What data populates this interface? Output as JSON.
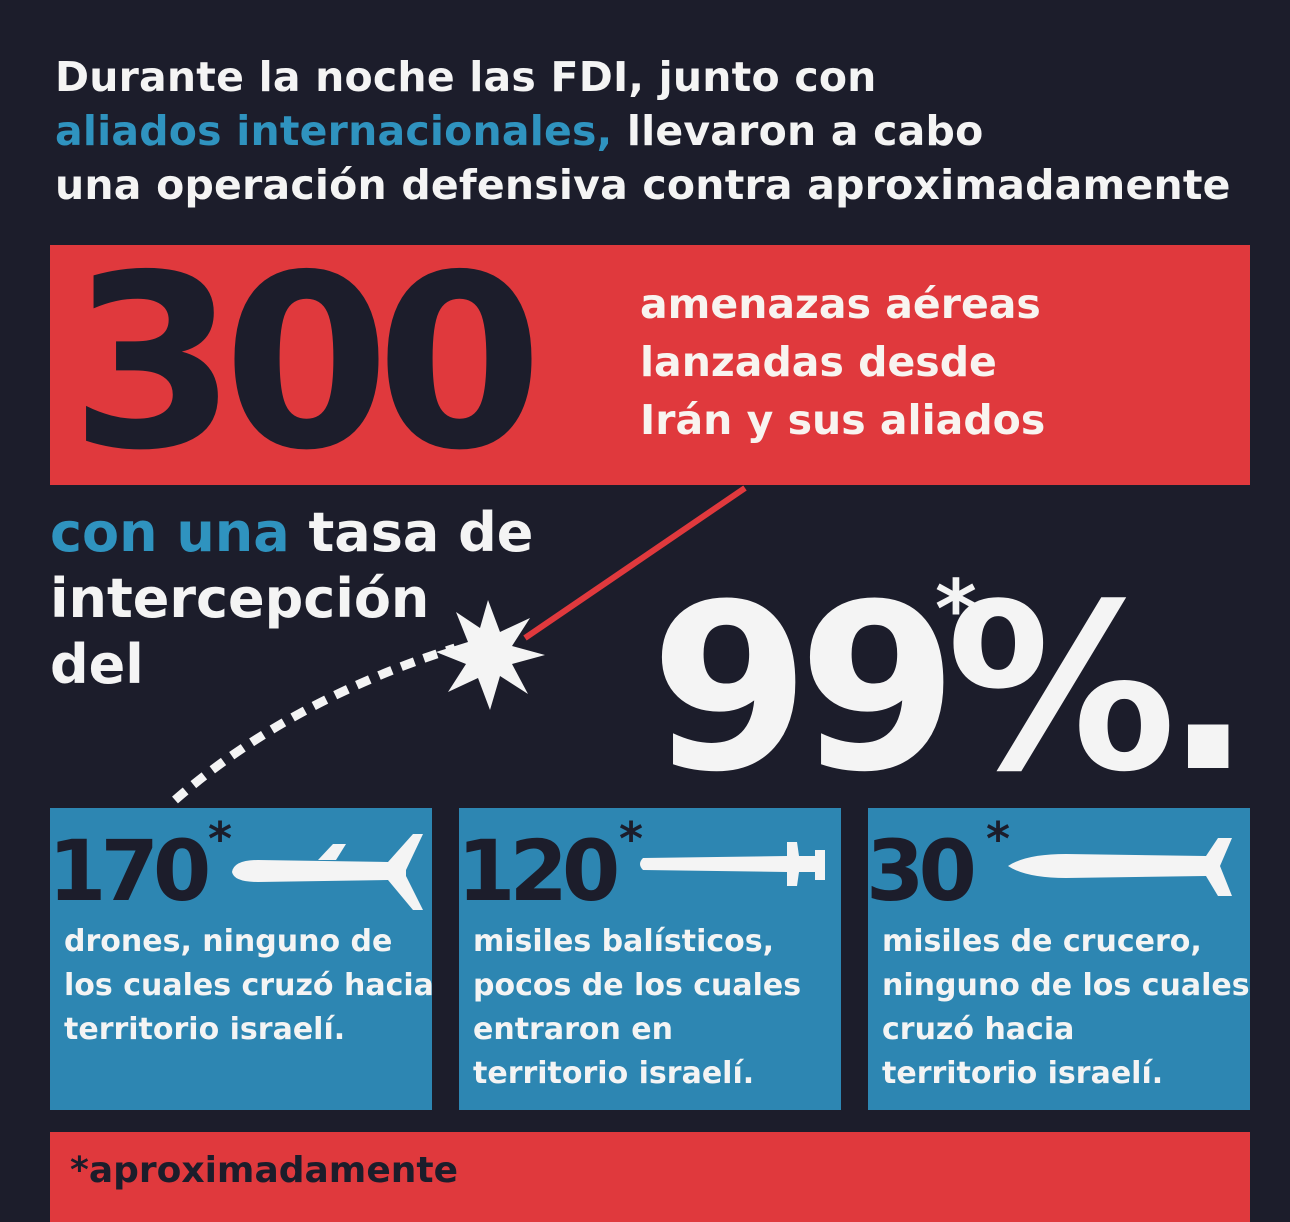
{
  "intro": {
    "line1": "Durante la noche las FDI, junto con",
    "line2_accent": "aliados internacionales,",
    "line2_rest": " llevaron a cabo",
    "line3": "una operación defensiva contra aproximadamente"
  },
  "headline": {
    "number": "300",
    "text_lines": [
      "amenazas aéreas",
      "lanzadas desde",
      "Irán y sus aliados"
    ]
  },
  "rate": {
    "accent": "con una",
    "line1_rest": " tasa de",
    "line2": "intercepción",
    "line3": "del"
  },
  "percentage": {
    "value": "99%.",
    "asterisk": "*"
  },
  "cards": [
    {
      "number": "170",
      "asterisk": "*",
      "icon": "drone-icon",
      "lines": [
        "drones, ninguno de",
        "los cuales cruzó hacia",
        "territorio israelí."
      ]
    },
    {
      "number": "120",
      "asterisk": "*",
      "icon": "ballistic-missile-icon",
      "lines": [
        "misiles balísticos,",
        "pocos de los cuales",
        "entraron en",
        "territorio israelí."
      ]
    },
    {
      "number": "30",
      "asterisk": "*",
      "icon": "cruise-missile-icon",
      "lines": [
        "misiles de crucero,",
        "ninguno de los cuales",
        "cruzó hacia",
        "territorio israelí."
      ]
    }
  ],
  "footnote": "*aproximadamente",
  "colors": {
    "background": "#1c1d2b",
    "red": "#e0393d",
    "blue": "#2d86b2",
    "accent_text": "#2f93bf"
  }
}
